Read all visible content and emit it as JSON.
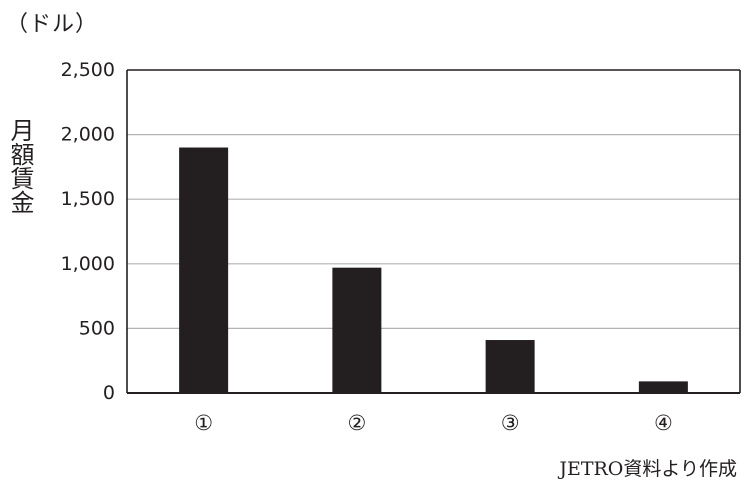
{
  "chart_data": {
    "type": "bar",
    "unit_label": "（ドル）",
    "ylabel": "月額賃金",
    "categories": [
      "①",
      "②",
      "③",
      "④"
    ],
    "values": [
      1900,
      970,
      410,
      90
    ],
    "ylim": [
      0,
      2500
    ],
    "yticks": [
      0,
      500,
      1000,
      1500,
      2000,
      2500
    ],
    "ytick_labels": [
      "0",
      "500",
      "1,000",
      "1,500",
      "2,000",
      "2,500"
    ],
    "grid": true,
    "source": "JETRO資料より作成",
    "colors": {
      "bar": "#231f20",
      "grid": "#b3b3b3",
      "axis": "#231f20"
    }
  }
}
